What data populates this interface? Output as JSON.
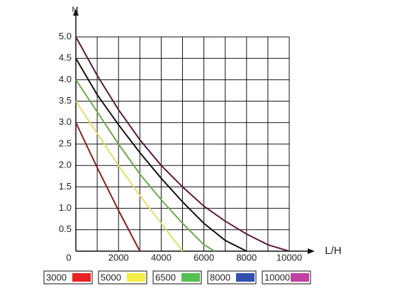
{
  "chart_data": {
    "type": "line",
    "y_axis_label": "M",
    "x_axis_label": "L/H",
    "xlim": [
      0,
      10000
    ],
    "ylim": [
      0,
      5
    ],
    "xticks": [
      0,
      2000,
      4000,
      6000,
      8000,
      10000
    ],
    "x_minor_grid": [
      1000,
      3000,
      5000,
      7000,
      9000
    ],
    "yticks": [
      {
        "value": 0.5,
        "label": "0.5"
      },
      {
        "value": 1,
        "label": "1.0"
      },
      {
        "value": 1.5,
        "label": "1.5"
      },
      {
        "value": 2,
        "label": "2.0"
      },
      {
        "value": 2.5,
        "label": "2.5"
      },
      {
        "value": 3,
        "label": "3.0"
      },
      {
        "value": 3.5,
        "label": "3.5"
      },
      {
        "value": 4,
        "label": "4.0"
      },
      {
        "value": 4.5,
        "label": "4.5"
      },
      {
        "value": 5,
        "label": "5.0"
      }
    ],
    "grid": true,
    "series": [
      {
        "name": "3000",
        "color": "#8b1f1f",
        "legend_color": "#e82222",
        "x": [
          0,
          1000,
          2000,
          3000
        ],
        "values": [
          3.0,
          1.95,
          0.95,
          0
        ]
      },
      {
        "name": "5000",
        "color": "#e4dc6a",
        "legend_color": "#f2ee48",
        "x": [
          0,
          1000,
          2000,
          3000,
          4000,
          5000
        ],
        "values": [
          3.5,
          2.75,
          2.0,
          1.3,
          0.65,
          0
        ]
      },
      {
        "name": "6500",
        "color": "#6aaa4a",
        "legend_color": "#52c052",
        "x": [
          0,
          1000,
          2000,
          3000,
          4000,
          5000,
          6000,
          6500
        ],
        "values": [
          4.0,
          3.25,
          2.5,
          1.8,
          1.2,
          0.65,
          0.15,
          0
        ]
      },
      {
        "name": "8000",
        "color": "#111111",
        "legend_color": "#3050b0",
        "x": [
          0,
          1000,
          2000,
          3000,
          4000,
          5000,
          6000,
          7000,
          8000
        ],
        "values": [
          4.5,
          3.65,
          2.95,
          2.3,
          1.7,
          1.15,
          0.65,
          0.25,
          0
        ]
      },
      {
        "name": "10000",
        "color": "#5a1a40",
        "legend_color": "#c040a0",
        "x": [
          0,
          1000,
          2000,
          3000,
          4000,
          5000,
          6000,
          7000,
          8000,
          9000,
          10000
        ],
        "values": [
          5.0,
          4.1,
          3.3,
          2.6,
          2.0,
          1.5,
          1.05,
          0.7,
          0.4,
          0.15,
          0
        ]
      }
    ]
  }
}
